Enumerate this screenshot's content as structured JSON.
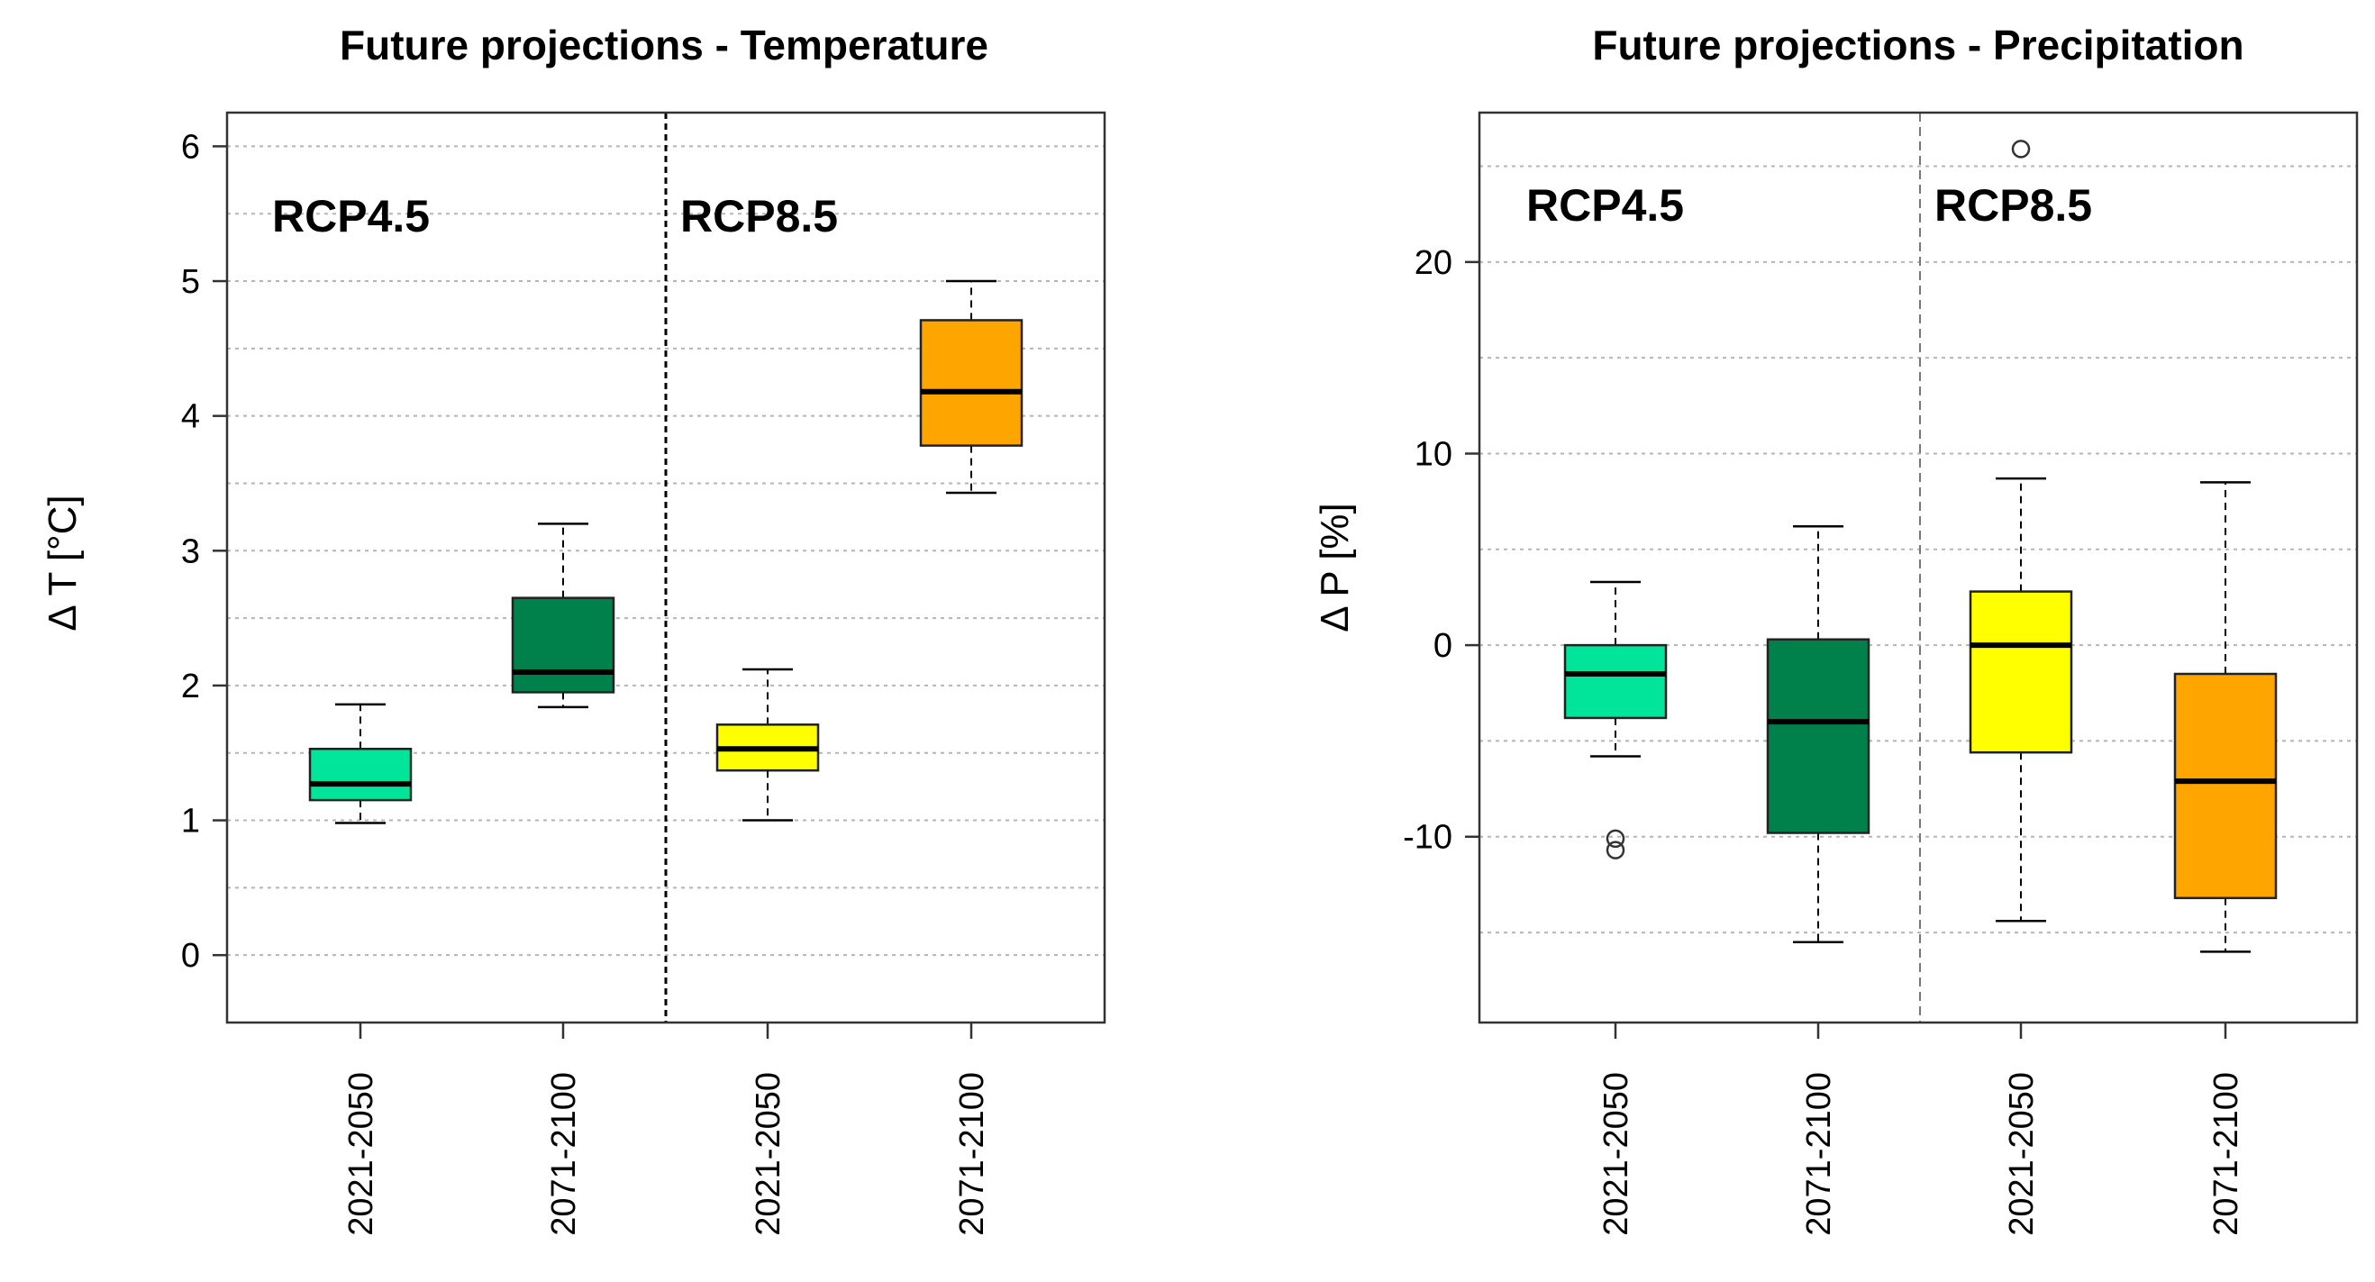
{
  "chart_data": [
    {
      "type": "box",
      "title": "Future projections - Temperature",
      "ylabel": "Δ T [°C]",
      "ylim": [
        -0.5,
        6.25
      ],
      "yticks": [
        0,
        1,
        2,
        3,
        4,
        5,
        6
      ],
      "grid": true,
      "scenario_labels": [
        "RCP4.5",
        "RCP8.5"
      ],
      "boxes": [
        {
          "scenario": "RCP4.5",
          "period": "2021-2050",
          "color": "#00E59A",
          "whisker_low": 0.98,
          "q1": 1.15,
          "median": 1.27,
          "q3": 1.53,
          "whisker_high": 1.86,
          "outliers": []
        },
        {
          "scenario": "RCP4.5",
          "period": "2071-2100",
          "color": "#00804A",
          "whisker_low": 1.84,
          "q1": 1.95,
          "median": 2.1,
          "q3": 2.65,
          "whisker_high": 3.2,
          "outliers": []
        },
        {
          "scenario": "RCP8.5",
          "period": "2021-2050",
          "color": "#FFFF00",
          "whisker_low": 1.0,
          "q1": 1.37,
          "median": 1.53,
          "q3": 1.71,
          "whisker_high": 2.12,
          "outliers": []
        },
        {
          "scenario": "RCP8.5",
          "period": "2071-2100",
          "color": "#FFA500",
          "whisker_low": 3.43,
          "q1": 3.78,
          "median": 4.18,
          "q3": 4.71,
          "whisker_high": 5.0,
          "outliers": []
        }
      ]
    },
    {
      "type": "box",
      "title": "Future projections - Precipitation",
      "ylabel": "Δ P [%]",
      "ylim": [
        -19.7,
        27.8
      ],
      "yticks": [
        -10,
        0,
        10,
        20
      ],
      "grid": true,
      "scenario_labels": [
        "RCP4.5",
        "RCP8.5"
      ],
      "boxes": [
        {
          "scenario": "RCP4.5",
          "period": "2021-2050",
          "color": "#00E59A",
          "whisker_low": -5.8,
          "q1": -3.8,
          "median": -1.5,
          "q3": 0.0,
          "whisker_high": 3.3,
          "outliers": [
            -10.1,
            -10.7
          ]
        },
        {
          "scenario": "RCP4.5",
          "period": "2071-2100",
          "color": "#00804A",
          "whisker_low": -15.5,
          "q1": -9.8,
          "median": -4.0,
          "q3": 0.3,
          "whisker_high": 6.2,
          "outliers": []
        },
        {
          "scenario": "RCP8.5",
          "period": "2021-2050",
          "color": "#FFFF00",
          "whisker_low": -14.4,
          "q1": -5.6,
          "median": 0.0,
          "q3": 2.8,
          "whisker_high": 8.7,
          "outliers": [
            25.9
          ]
        },
        {
          "scenario": "RCP8.5",
          "period": "2071-2100",
          "color": "#FFA500",
          "whisker_low": -16.0,
          "q1": -13.2,
          "median": -7.1,
          "q3": -1.5,
          "whisker_high": 8.5,
          "outliers": []
        }
      ]
    }
  ]
}
